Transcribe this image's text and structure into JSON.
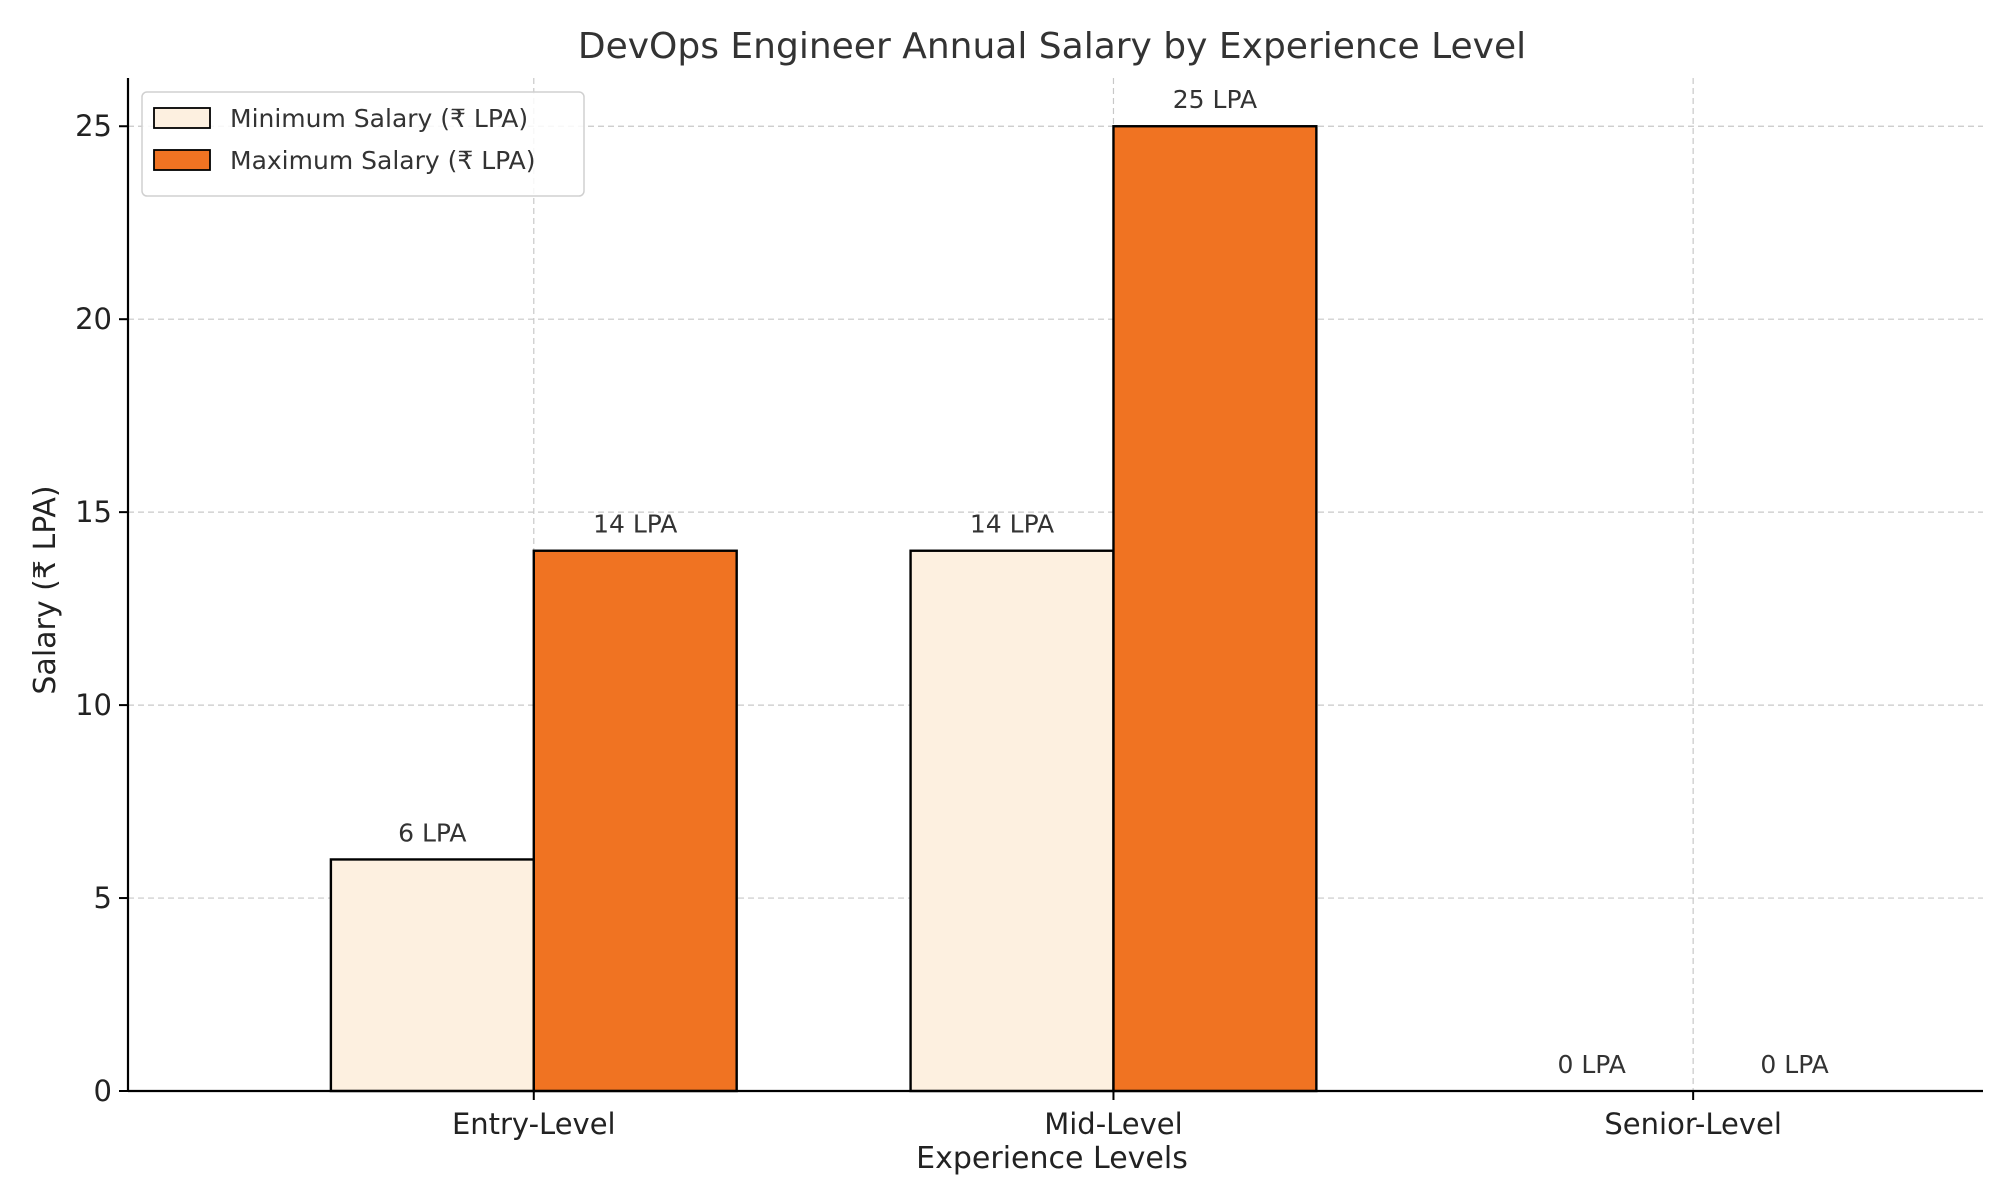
{
  "chart_data": {
    "type": "bar",
    "title": "DevOps Engineer Annual Salary by Experience Level",
    "xlabel": "Experience Levels",
    "ylabel": "Salary (₹ LPA)",
    "categories": [
      "Entry-Level",
      "Mid-Level",
      "Senior-Level"
    ],
    "series": [
      {
        "name": "Minimum Salary (₹ LPA)",
        "values": [
          6,
          14,
          0
        ],
        "labels": [
          "6 LPA",
          "14 LPA",
          "0 LPA"
        ],
        "color": "#fdf0e0"
      },
      {
        "name": "Maximum Salary (₹ LPA)",
        "values": [
          14,
          25,
          0
        ],
        "labels": [
          "14 LPA",
          "25 LPA",
          "0 LPA"
        ],
        "color": "#f07322"
      }
    ],
    "ylim": [
      0,
      26.25
    ],
    "yticks": [
      0,
      5,
      10,
      15,
      20,
      25
    ],
    "grid": true,
    "legend_position": "top-left",
    "edge_color": "#000000"
  }
}
